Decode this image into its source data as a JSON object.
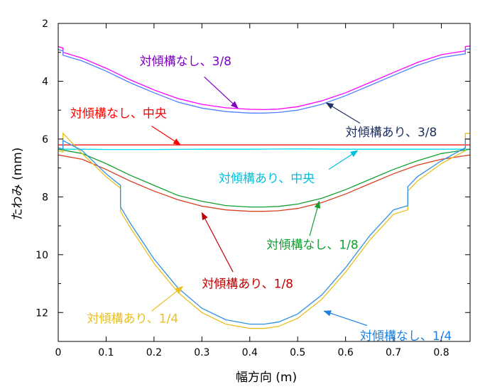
{
  "chart_data": {
    "type": "line",
    "xlabel": "幅方向 (m)",
    "ylabel": "たわみ (mm)",
    "xlim": [
      0,
      0.86
    ],
    "ylim": [
      13,
      2
    ],
    "y_inverted": true,
    "grid": false,
    "xticks": [
      0,
      0.1,
      0.2,
      0.3,
      0.4,
      0.5,
      0.6,
      0.7,
      0.8
    ],
    "xtick_labels": [
      "0",
      "0.1",
      "0.2",
      "0.3",
      "0.4",
      "0.5",
      "0.6",
      "0.7",
      "0.8"
    ],
    "yticks": [
      2,
      4,
      6,
      8,
      10,
      12
    ],
    "ytick_labels": [
      "2",
      "4",
      "6",
      "8",
      "10",
      "12"
    ],
    "series": [
      {
        "name": "対傾構なし、3/8",
        "color": "#ff00ff",
        "x": [
          0,
          0.01,
          0.01,
          0.05,
          0.1,
          0.15,
          0.2,
          0.25,
          0.3,
          0.35,
          0.4,
          0.43,
          0.46,
          0.5,
          0.55,
          0.6,
          0.65,
          0.7,
          0.75,
          0.8,
          0.85,
          0.85,
          0.86
        ],
        "y": [
          2.8,
          2.85,
          3.0,
          3.2,
          3.55,
          3.95,
          4.3,
          4.6,
          4.8,
          4.92,
          4.97,
          4.98,
          4.96,
          4.88,
          4.68,
          4.4,
          4.05,
          3.7,
          3.35,
          3.08,
          2.95,
          2.8,
          2.78
        ]
      },
      {
        "name": "対傾構あり、3/8",
        "color": "#5080ff",
        "x": [
          0,
          0.01,
          0.01,
          0.05,
          0.1,
          0.15,
          0.2,
          0.25,
          0.3,
          0.35,
          0.4,
          0.43,
          0.46,
          0.5,
          0.55,
          0.6,
          0.65,
          0.7,
          0.75,
          0.8,
          0.85,
          0.85,
          0.86
        ],
        "y": [
          2.9,
          2.95,
          3.1,
          3.3,
          3.65,
          4.05,
          4.4,
          4.72,
          4.93,
          5.05,
          5.1,
          5.1,
          5.08,
          5.0,
          4.8,
          4.5,
          4.15,
          3.8,
          3.45,
          3.18,
          3.05,
          2.9,
          2.88
        ]
      },
      {
        "name": "対傾構なし、中央",
        "color": "#ff0000",
        "x": [
          0,
          0.86
        ],
        "y": [
          6.2,
          6.2
        ]
      },
      {
        "name": "対傾構あり、中央",
        "color": "#00d8f0",
        "x": [
          0,
          0.05,
          0.1,
          0.2,
          0.3,
          0.4,
          0.5,
          0.6,
          0.7,
          0.8,
          0.86
        ],
        "y": [
          6.35,
          6.35,
          6.36,
          6.36,
          6.35,
          6.35,
          6.34,
          6.35,
          6.35,
          6.35,
          6.35
        ]
      },
      {
        "name": "対傾構なし、1/8",
        "color": "#10a030",
        "x": [
          0,
          0.05,
          0.1,
          0.15,
          0.2,
          0.25,
          0.3,
          0.35,
          0.4,
          0.43,
          0.46,
          0.5,
          0.55,
          0.6,
          0.65,
          0.7,
          0.75,
          0.8,
          0.86
        ],
        "y": [
          6.35,
          6.5,
          6.85,
          7.25,
          7.6,
          7.95,
          8.15,
          8.3,
          8.35,
          8.35,
          8.33,
          8.25,
          8.05,
          7.75,
          7.4,
          7.05,
          6.75,
          6.5,
          6.35
        ]
      },
      {
        "name": "対傾構あり、1/8",
        "color": "#d84020",
        "x": [
          0,
          0.05,
          0.1,
          0.15,
          0.2,
          0.25,
          0.3,
          0.35,
          0.4,
          0.43,
          0.46,
          0.5,
          0.55,
          0.6,
          0.65,
          0.7,
          0.75,
          0.8,
          0.86
        ],
        "y": [
          6.55,
          6.7,
          7.05,
          7.45,
          7.8,
          8.1,
          8.32,
          8.45,
          8.5,
          8.5,
          8.48,
          8.4,
          8.2,
          7.9,
          7.55,
          7.2,
          6.9,
          6.7,
          6.55
        ]
      },
      {
        "name": "対傾構あり、1/4",
        "color": "#e8c020",
        "x": [
          0,
          0.01,
          0.01,
          0.05,
          0.1,
          0.13,
          0.13,
          0.15,
          0.2,
          0.25,
          0.3,
          0.35,
          0.4,
          0.43,
          0.46,
          0.5,
          0.55,
          0.6,
          0.65,
          0.7,
          0.73,
          0.73,
          0.75,
          0.8,
          0.85,
          0.85,
          0.86
        ],
        "y": [
          6.4,
          6.45,
          5.8,
          6.5,
          7.3,
          7.7,
          8.5,
          9.05,
          10.3,
          11.3,
          12.0,
          12.4,
          12.55,
          12.55,
          12.48,
          12.2,
          11.55,
          10.6,
          9.5,
          8.6,
          8.45,
          7.8,
          7.45,
          6.85,
          6.4,
          5.8,
          5.8
        ]
      },
      {
        "name": "対傾構なし、1/4",
        "color": "#3090e0",
        "x": [
          0,
          0.01,
          0.01,
          0.05,
          0.1,
          0.13,
          0.13,
          0.15,
          0.2,
          0.25,
          0.3,
          0.35,
          0.4,
          0.43,
          0.46,
          0.5,
          0.55,
          0.6,
          0.65,
          0.7,
          0.73,
          0.73,
          0.75,
          0.8,
          0.85,
          0.85,
          0.86
        ],
        "y": [
          6.3,
          6.35,
          6.05,
          6.4,
          7.2,
          7.6,
          8.35,
          8.9,
          10.15,
          11.15,
          11.85,
          12.25,
          12.4,
          12.4,
          12.33,
          12.05,
          11.4,
          10.45,
          9.35,
          8.45,
          8.3,
          7.65,
          7.3,
          6.75,
          6.3,
          6.0,
          6.0
        ]
      }
    ],
    "annotations": [
      {
        "text": "対傾構なし、3/8",
        "color": "#8000c0",
        "text_at": [
          0.17,
          3.45
        ],
        "arrow_from": [
          0.305,
          3.85
        ],
        "arrow_to": [
          0.375,
          4.93
        ]
      },
      {
        "text": "対傾構あり、3/8",
        "color": "#203060",
        "text_at": [
          0.6,
          5.9
        ],
        "arrow_from": [
          0.63,
          5.45
        ],
        "arrow_to": [
          0.56,
          4.75
        ]
      },
      {
        "text": "対傾構なし、中央",
        "color": "#ff0000",
        "text_at": [
          0.025,
          5.25
        ],
        "arrow_from": [
          0.195,
          5.55
        ],
        "arrow_to": [
          0.255,
          6.2
        ]
      },
      {
        "text": "対傾構あり、中央",
        "color": "#00c0e0",
        "text_at": [
          0.335,
          7.5
        ],
        "arrow_from": [
          0.565,
          7.05
        ],
        "arrow_to": [
          0.625,
          6.4
        ]
      },
      {
        "text": "対傾構なし、1/8",
        "color": "#10a030",
        "text_at": [
          0.435,
          9.8
        ],
        "arrow_from": [
          0.525,
          9.35
        ],
        "arrow_to": [
          0.545,
          8.15
        ]
      },
      {
        "text": "対傾構あり、1/8",
        "color": "#c00000",
        "text_at": [
          0.3,
          11.15
        ],
        "arrow_from": [
          0.365,
          10.6
        ],
        "arrow_to": [
          0.3,
          8.55
        ]
      },
      {
        "text": "対傾構あり、1/4",
        "color": "#e8c020",
        "text_at": [
          0.06,
          12.35
        ],
        "arrow_from": [
          0.195,
          11.95
        ],
        "arrow_to": [
          0.26,
          11.1
        ]
      },
      {
        "text": "対傾構なし、1/4",
        "color": "#2080e0",
        "text_at": [
          0.63,
          12.95
        ],
        "arrow_from": [
          0.645,
          12.45
        ],
        "arrow_to": [
          0.555,
          11.95
        ]
      }
    ]
  }
}
